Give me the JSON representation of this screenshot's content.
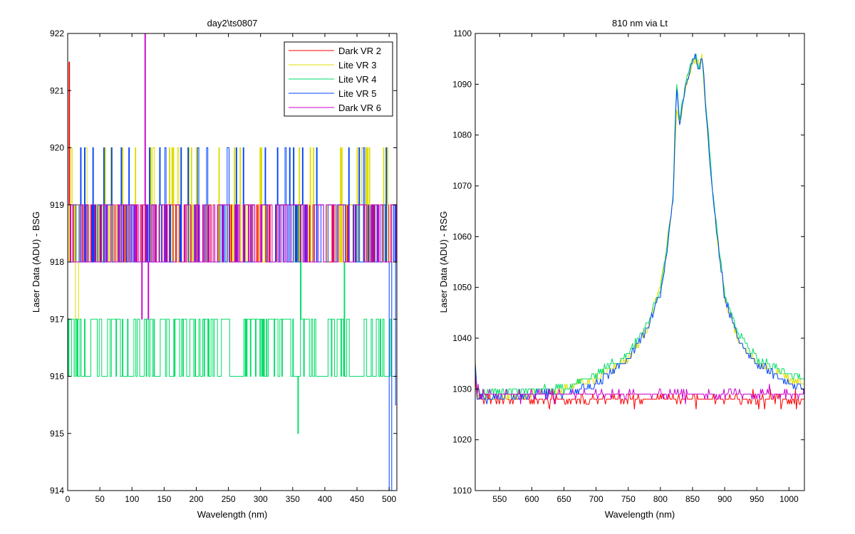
{
  "chart_data": [
    {
      "type": "line",
      "title": "day2\\ts0807",
      "xlabel": "Wavelength (nm)",
      "ylabel": "Laser Data (ADU) - BSG",
      "xlim": [
        0,
        512
      ],
      "ylim": [
        914,
        922
      ],
      "xticks": [
        0,
        50,
        100,
        150,
        200,
        250,
        300,
        350,
        400,
        450,
        500
      ],
      "yticks": [
        914,
        915,
        916,
        917,
        918,
        919,
        920,
        921,
        922
      ],
      "legend_position": "top-right",
      "series": [
        {
          "name": "Dark VR 2",
          "color": "#ff0000",
          "levels": [
            918,
            919
          ],
          "spikes": [
            [
              0,
              920
            ],
            [
              2,
              921.5
            ]
          ]
        },
        {
          "name": "Lite VR 3",
          "color": "#dddd00",
          "levels": [
            918,
            919,
            920
          ],
          "spikes": [
            [
              12,
              917
            ],
            [
              105,
              920
            ],
            [
              235,
              920
            ],
            [
              450,
              920
            ]
          ]
        },
        {
          "name": "Lite VR 4",
          "color": "#00dd66",
          "levels": [
            916,
            917
          ],
          "spikes": [
            [
              358,
              915
            ],
            [
              362,
              918
            ],
            [
              430,
              918
            ]
          ]
        },
        {
          "name": "Lite VR 5",
          "color": "#0044ff",
          "levels": [
            918,
            919,
            920
          ],
          "spikes": [
            [
              500,
              914
            ],
            [
              510,
              915.5
            ]
          ]
        },
        {
          "name": "Dark VR 6",
          "color": "#cc00cc",
          "levels": [
            918,
            919
          ],
          "spikes": [
            [
              120,
              922
            ],
            [
              115,
              917
            ],
            [
              125,
              917
            ]
          ]
        }
      ]
    },
    {
      "type": "line",
      "title": "810 nm via Lt",
      "xlabel": "Wavelength (nm)",
      "ylabel": "Laser Data (ADU) - RSG",
      "xlim": [
        512,
        1024
      ],
      "ylim": [
        1010,
        1100
      ],
      "xticks": [
        550,
        600,
        650,
        700,
        750,
        800,
        850,
        900,
        950,
        1000
      ],
      "yticks": [
        1010,
        1020,
        1030,
        1040,
        1050,
        1060,
        1070,
        1080,
        1090,
        1100
      ],
      "series": [
        {
          "name": "Dark VR 2",
          "color": "#ff0000",
          "x": [
            512,
            515,
            520,
            600,
            700,
            800,
            900,
            1000,
            1024
          ],
          "y": [
            1033,
            1028,
            1028,
            1028,
            1028,
            1028,
            1028,
            1028,
            1028
          ]
        },
        {
          "name": "Lite VR 3",
          "color": "#dddd00",
          "x": [
            512,
            515,
            520,
            600,
            650,
            700,
            750,
            780,
            800,
            810,
            820,
            825,
            830,
            840,
            850,
            855,
            860,
            865,
            870,
            880,
            890,
            900,
            920,
            950,
            1000,
            1024
          ],
          "y": [
            1035,
            1029,
            1028,
            1029,
            1030,
            1032,
            1036,
            1042,
            1050,
            1058,
            1068,
            1085,
            1082,
            1090,
            1094,
            1095,
            1094,
            1095,
            1086,
            1070,
            1058,
            1048,
            1040,
            1035,
            1032,
            1031
          ]
        },
        {
          "name": "Lite VR 4",
          "color": "#00dd66",
          "x": [
            512,
            515,
            520,
            600,
            650,
            700,
            750,
            780,
            800,
            810,
            820,
            825,
            830,
            840,
            850,
            855,
            860,
            865,
            870,
            880,
            890,
            900,
            920,
            950,
            1000,
            1024
          ],
          "y": [
            1035,
            1029,
            1029,
            1030,
            1030,
            1033,
            1037,
            1043,
            1050,
            1058,
            1069,
            1091,
            1083,
            1091,
            1095,
            1096,
            1093,
            1096,
            1087,
            1071,
            1059,
            1049,
            1041,
            1036,
            1033,
            1032
          ]
        },
        {
          "name": "Lite VR 5",
          "color": "#0044ff",
          "x": [
            512,
            515,
            520,
            600,
            650,
            700,
            750,
            780,
            800,
            810,
            820,
            825,
            830,
            840,
            850,
            855,
            860,
            865,
            870,
            880,
            890,
            900,
            920,
            950,
            1000,
            1024
          ],
          "y": [
            1035,
            1028,
            1028,
            1029,
            1029,
            1031,
            1036,
            1042,
            1049,
            1057,
            1068,
            1090,
            1082,
            1090,
            1094,
            1096,
            1092,
            1096,
            1086,
            1070,
            1058,
            1048,
            1040,
            1035,
            1031,
            1030
          ]
        },
        {
          "name": "Dark VR 6",
          "color": "#cc00cc",
          "x": [
            512,
            515,
            520,
            600,
            700,
            800,
            900,
            1000,
            1024
          ],
          "y": [
            1033,
            1029,
            1029,
            1029,
            1029,
            1029,
            1029,
            1029,
            1029
          ]
        }
      ]
    }
  ]
}
